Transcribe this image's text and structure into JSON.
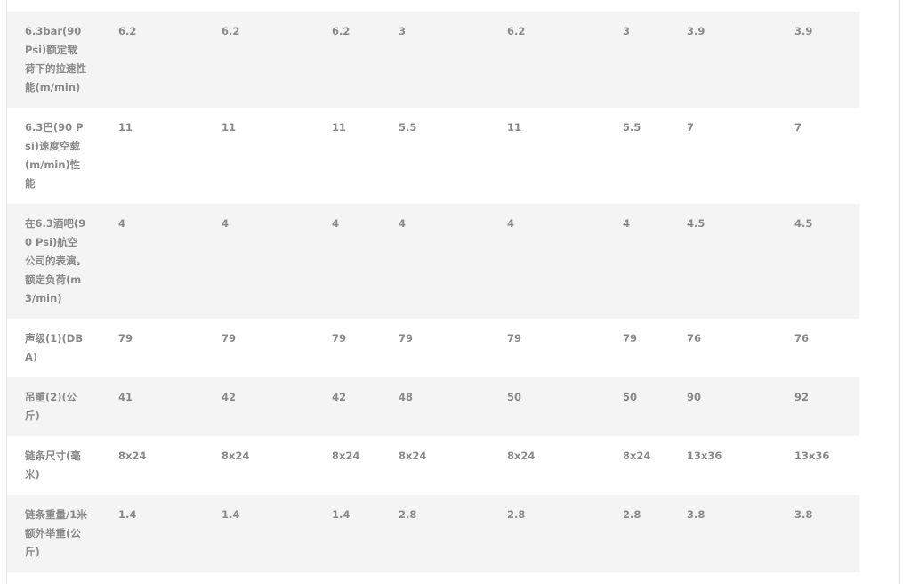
{
  "table": {
    "rows": [
      {
        "label": "6.3bar(90 Psi)额定载荷下的拉速性能(m/min)",
        "values": [
          "6.2",
          "6.2",
          "6.2",
          "3",
          "6.2",
          "3",
          "3.9",
          "3.9"
        ]
      },
      {
        "label": "6.3巴(90 Psi)速度空载(m/min)性能",
        "values": [
          "11",
          "11",
          "11",
          "5.5",
          "11",
          "5.5",
          "7",
          "7"
        ]
      },
      {
        "label": "在6.3酒吧(90 Psi)航空公司的表演。额定负荷(m3/min)",
        "values": [
          "4",
          "4",
          "4",
          "4",
          "4",
          "4",
          "4.5",
          "4.5"
        ]
      },
      {
        "label": "声级(1)(DBA)",
        "values": [
          "79",
          "79",
          "79",
          "79",
          "79",
          "79",
          "76",
          "76"
        ]
      },
      {
        "label": "吊重(2)(公斤)",
        "values": [
          "41",
          "42",
          "42",
          "48",
          "50",
          "50",
          "90",
          "92"
        ]
      },
      {
        "label": "链条尺寸(毫米)",
        "values": [
          "8x24",
          "8x24",
          "8x24",
          "8x24",
          "8x24",
          "8x24",
          "13x36",
          "13x36"
        ]
      },
      {
        "label": "链条重量/1米额外举重(公斤)",
        "values": [
          "1.4",
          "1.4",
          "1.4",
          "2.8",
          "2.8",
          "2.8",
          "3.8",
          "3.8"
        ]
      }
    ]
  }
}
